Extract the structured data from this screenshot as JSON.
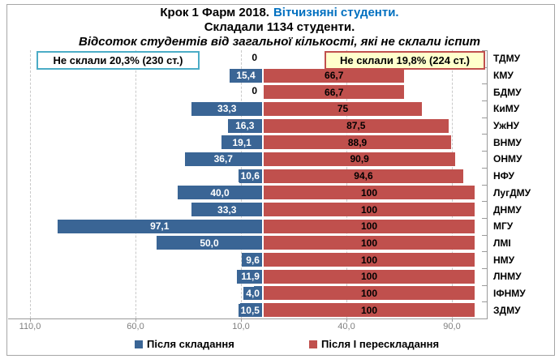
{
  "title": {
    "line1_black": "Крок 1 Фарм 2018.",
    "line1_blue": "Вітчизняні студенти.",
    "line2": "Складали 1134 студенти.",
    "line3": "Відсоток студентів від загальної кількості, які не склали іспит"
  },
  "annotations": {
    "left_box": "Не склали 20,3% (230 ст.)",
    "right_box": "Не склали 19,8% (224 ст.)"
  },
  "chart_data": {
    "type": "bar",
    "orientation": "diverging-horizontal",
    "title": "Крок 1 Фарм 2018. Вітчизняні студенти.",
    "subtitle": "Складали 1134 студенти.",
    "axis_note": "Відсоток студентів від загальної кількості, які не склали іспит",
    "categories": [
      "ТДМУ",
      "КМУ",
      "БДМУ",
      "КиМУ",
      "УжНУ",
      "ВНМУ",
      "ОНМУ",
      "НФУ",
      "ЛугДМУ",
      "ДНМУ",
      "МГУ",
      "ЛМІ",
      "НМУ",
      "ЛНМУ",
      "ІФНМУ",
      "ЗДМУ"
    ],
    "series": [
      {
        "name": "Після складання",
        "color": "#3a6595",
        "direction": "left",
        "values": [
          0,
          15.4,
          0,
          33.3,
          16.3,
          19.1,
          36.7,
          10.6,
          40.0,
          33.3,
          97.1,
          50.0,
          9.6,
          11.9,
          4.0,
          10.5
        ],
        "labels": [
          "0",
          "15,4",
          "0",
          "33,3",
          "16,3",
          "19,1",
          "36,7",
          "10,6",
          "40,0",
          "33,3",
          "97,1",
          "50,0",
          "9,6",
          "11,9",
          "4,0",
          "10,5"
        ]
      },
      {
        "name": "Після І перескладання",
        "color": "#c0504d",
        "direction": "right",
        "values": [
          0,
          66.7,
          66.7,
          75,
          87.5,
          88.9,
          90.9,
          94.6,
          100,
          100,
          100,
          100,
          100,
          100,
          100,
          100
        ],
        "labels": [
          "",
          "66,7",
          "66,7",
          "75",
          "87,5",
          "88,9",
          "90,9",
          "94,6",
          "100",
          "100",
          "100",
          "100",
          "100",
          "100",
          "100",
          "100"
        ]
      }
    ],
    "axis": {
      "tick_labels": [
        "110,0",
        "60,0",
        "10,0",
        "40,0",
        "90,0"
      ],
      "tick_values": [
        -110,
        -60,
        -10,
        40,
        90
      ],
      "left_max": 120,
      "right_max": 106,
      "grid": "dashed-vertical"
    },
    "legend_position": "bottom"
  },
  "colors": {
    "series_blue": "#3a6595",
    "series_red": "#c0504d",
    "title_accent_blue": "#0070c0",
    "left_box_border": "#4bacc6",
    "right_box_border": "#c0504d",
    "right_box_fill": "#ffffcc",
    "axis_text": "#7f7f7f"
  }
}
